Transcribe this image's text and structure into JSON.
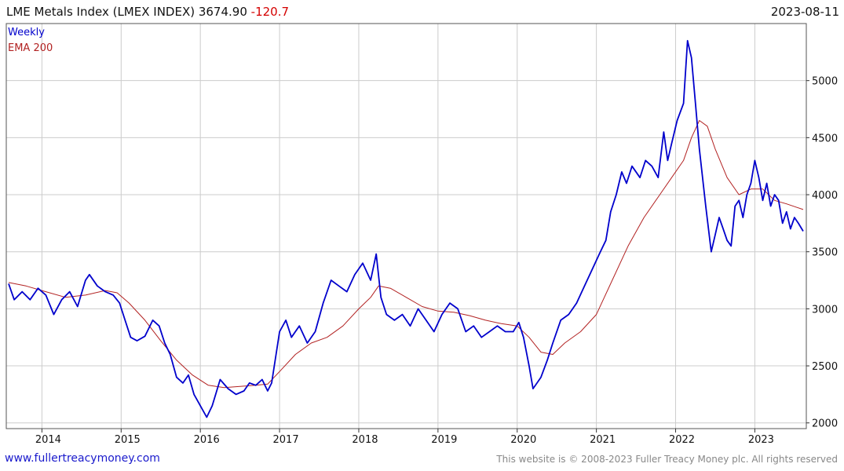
{
  "header": {
    "title": "LME Metals Index (LMEX INDEX) 3674.90",
    "change": "-120.7",
    "date": "2023-08-11"
  },
  "footer": {
    "site": "www.fullertreacymoney.com",
    "copyright": "This website is © 2008-2023 Fuller Treacy Money plc. All rights reserved"
  },
  "colors": {
    "price": "#0000cc",
    "ema": "#b22222",
    "grid": "#cccccc",
    "axis": "#333333"
  },
  "chart_data": {
    "type": "line",
    "grid": true,
    "legend_position": "top-left",
    "y_axis_side": "right",
    "ylim": [
      1950,
      5500
    ],
    "xlim": [
      2013.55,
      2023.65
    ],
    "y_ticks": [
      2000,
      2500,
      3000,
      3500,
      4000,
      4500,
      5000
    ],
    "x_ticks": [
      "2014",
      "2015",
      "2016",
      "2017",
      "2018",
      "2019",
      "2020",
      "2021",
      "2022",
      "2023"
    ],
    "series": [
      {
        "name": "Weekly",
        "x": [
          2013.58,
          2013.65,
          2013.75,
          2013.85,
          2013.95,
          2014.05,
          2014.15,
          2014.25,
          2014.35,
          2014.45,
          2014.55,
          2014.6,
          2014.7,
          2014.8,
          2014.9,
          2014.98,
          2015.05,
          2015.12,
          2015.2,
          2015.3,
          2015.4,
          2015.48,
          2015.55,
          2015.62,
          2015.7,
          2015.78,
          2015.85,
          2015.92,
          2016.0,
          2016.08,
          2016.15,
          2016.25,
          2016.35,
          2016.45,
          2016.55,
          2016.62,
          2016.7,
          2016.78,
          2016.85,
          2016.9,
          2017.0,
          2017.08,
          2017.15,
          2017.25,
          2017.35,
          2017.45,
          2017.55,
          2017.65,
          2017.75,
          2017.85,
          2017.95,
          2018.05,
          2018.15,
          2018.22,
          2018.28,
          2018.35,
          2018.45,
          2018.55,
          2018.65,
          2018.75,
          2018.85,
          2018.95,
          2019.05,
          2019.15,
          2019.25,
          2019.35,
          2019.45,
          2019.55,
          2019.65,
          2019.75,
          2019.85,
          2019.95,
          2020.02,
          2020.08,
          2020.15,
          2020.2,
          2020.25,
          2020.3,
          2020.38,
          2020.45,
          2020.55,
          2020.65,
          2020.75,
          2020.85,
          2020.95,
          2021.05,
          2021.12,
          2021.18,
          2021.25,
          2021.32,
          2021.38,
          2021.45,
          2021.55,
          2021.62,
          2021.7,
          2021.78,
          2021.85,
          2021.9,
          2021.95,
          2022.02,
          2022.1,
          2022.15,
          2022.2,
          2022.25,
          2022.3,
          2022.38,
          2022.45,
          2022.5,
          2022.55,
          2022.6,
          2022.65,
          2022.7,
          2022.75,
          2022.8,
          2022.85,
          2022.9,
          2022.95,
          2023.0,
          2023.05,
          2023.1,
          2023.15,
          2023.2,
          2023.25,
          2023.3,
          2023.35,
          2023.4,
          2023.45,
          2023.5,
          2023.55,
          2023.61
        ],
        "values": [
          3220,
          3080,
          3150,
          3080,
          3180,
          3120,
          2950,
          3080,
          3150,
          3020,
          3250,
          3300,
          3200,
          3150,
          3120,
          3050,
          2900,
          2750,
          2720,
          2760,
          2900,
          2850,
          2700,
          2600,
          2400,
          2350,
          2420,
          2250,
          2150,
          2050,
          2150,
          2380,
          2300,
          2250,
          2280,
          2350,
          2330,
          2380,
          2280,
          2350,
          2800,
          2900,
          2750,
          2850,
          2700,
          2800,
          3050,
          3250,
          3200,
          3150,
          3300,
          3400,
          3250,
          3480,
          3100,
          2950,
          2900,
          2950,
          2850,
          3000,
          2900,
          2800,
          2950,
          3050,
          3000,
          2800,
          2850,
          2750,
          2800,
          2850,
          2800,
          2800,
          2880,
          2750,
          2500,
          2300,
          2350,
          2400,
          2550,
          2700,
          2900,
          2950,
          3050,
          3200,
          3350,
          3500,
          3600,
          3850,
          4000,
          4200,
          4100,
          4250,
          4150,
          4300,
          4250,
          4150,
          4550,
          4300,
          4450,
          4650,
          4800,
          5350,
          5200,
          4800,
          4400,
          3900,
          3500,
          3650,
          3800,
          3700,
          3600,
          3550,
          3900,
          3950,
          3800,
          4000,
          4100,
          4300,
          4150,
          3950,
          4100,
          3900,
          4000,
          3950,
          3750,
          3850,
          3700,
          3800,
          3750,
          3680
        ]
      },
      {
        "name": "EMA 200",
        "x": [
          2013.58,
          2013.8,
          2014.05,
          2014.3,
          2014.55,
          2014.8,
          2014.95,
          2015.1,
          2015.3,
          2015.5,
          2015.7,
          2015.9,
          2016.1,
          2016.3,
          2016.5,
          2016.7,
          2016.85,
          2017.0,
          2017.2,
          2017.4,
          2017.6,
          2017.8,
          2018.0,
          2018.15,
          2018.25,
          2018.4,
          2018.6,
          2018.8,
          2019.0,
          2019.2,
          2019.4,
          2019.6,
          2019.8,
          2020.0,
          2020.15,
          2020.3,
          2020.45,
          2020.6,
          2020.8,
          2021.0,
          2021.2,
          2021.4,
          2021.6,
          2021.8,
          2021.95,
          2022.1,
          2022.2,
          2022.3,
          2022.4,
          2022.5,
          2022.65,
          2022.8,
          2022.95,
          2023.1,
          2023.25,
          2023.4,
          2023.61
        ],
        "values": [
          3230,
          3200,
          3150,
          3100,
          3120,
          3160,
          3140,
          3050,
          2900,
          2720,
          2550,
          2420,
          2330,
          2310,
          2320,
          2330,
          2340,
          2450,
          2600,
          2700,
          2750,
          2850,
          3000,
          3100,
          3200,
          3180,
          3100,
          3020,
          2980,
          2970,
          2940,
          2900,
          2870,
          2850,
          2750,
          2620,
          2600,
          2700,
          2800,
          2950,
          3250,
          3550,
          3800,
          4000,
          4150,
          4300,
          4500,
          4650,
          4600,
          4400,
          4150,
          4000,
          4050,
          4050,
          3950,
          3920,
          3870
        ]
      }
    ]
  }
}
